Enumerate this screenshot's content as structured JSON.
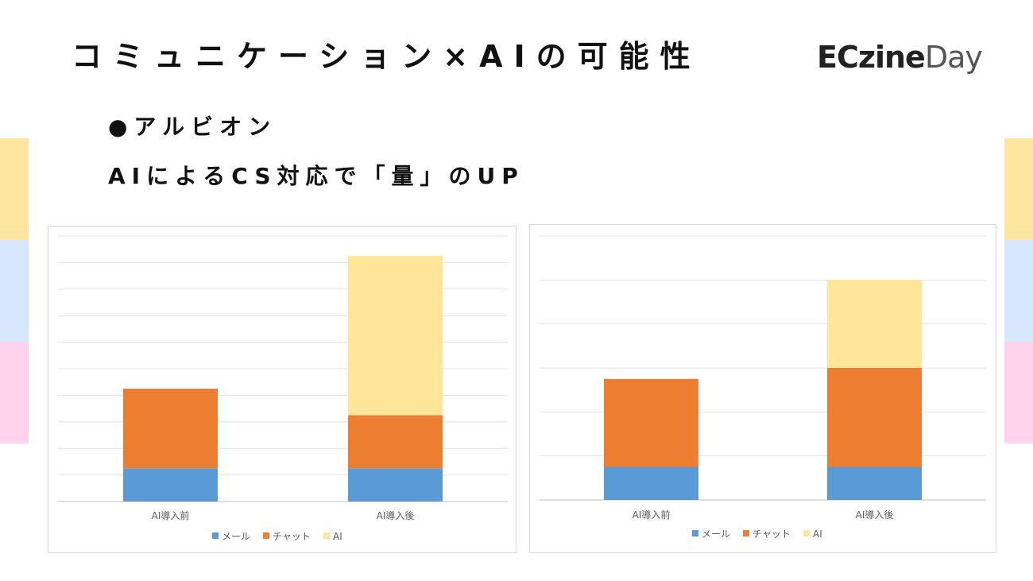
{
  "page": {
    "title": "コミュニケーション×AIの可能性",
    "logo": {
      "part1": "ECzine",
      "part2": "Day"
    },
    "subtitle_line1": "●アルビオン",
    "subtitle_line2": "AIによるCS対応で「量」のUP"
  },
  "decor": {
    "stripe_colors": [
      "#FEE6A1",
      "#D6E8FB",
      "#FFD3EC"
    ]
  },
  "chart_data": [
    {
      "type": "bar",
      "stacked": true,
      "categories": [
        "AI導入前",
        "AI導入後"
      ],
      "series": [
        {
          "name": "メール",
          "color": "#5B9BD5",
          "values": [
            1.25,
            1.25
          ]
        },
        {
          "name": "チャット",
          "color": "#ED7D31",
          "values": [
            3.0,
            2.0
          ]
        },
        {
          "name": "AI",
          "color": "#FFE699",
          "values": [
            0,
            6.0
          ]
        }
      ],
      "ylim": [
        0,
        10
      ],
      "gridlines": 10,
      "grid": true,
      "legend": "bottom",
      "title": "",
      "xlabel": "",
      "ylabel": ""
    },
    {
      "type": "bar",
      "stacked": true,
      "categories": [
        "AI導入前",
        "AI導入後"
      ],
      "series": [
        {
          "name": "メール",
          "color": "#5B9BD5",
          "values": [
            0.75,
            0.75
          ]
        },
        {
          "name": "チャット",
          "color": "#ED7D31",
          "values": [
            2.0,
            2.25
          ]
        },
        {
          "name": "AI",
          "color": "#FFE699",
          "values": [
            0,
            2.0
          ]
        }
      ],
      "ylim": [
        0,
        6
      ],
      "gridlines": 6,
      "grid": true,
      "legend": "bottom",
      "title": "",
      "xlabel": "",
      "ylabel": ""
    }
  ]
}
